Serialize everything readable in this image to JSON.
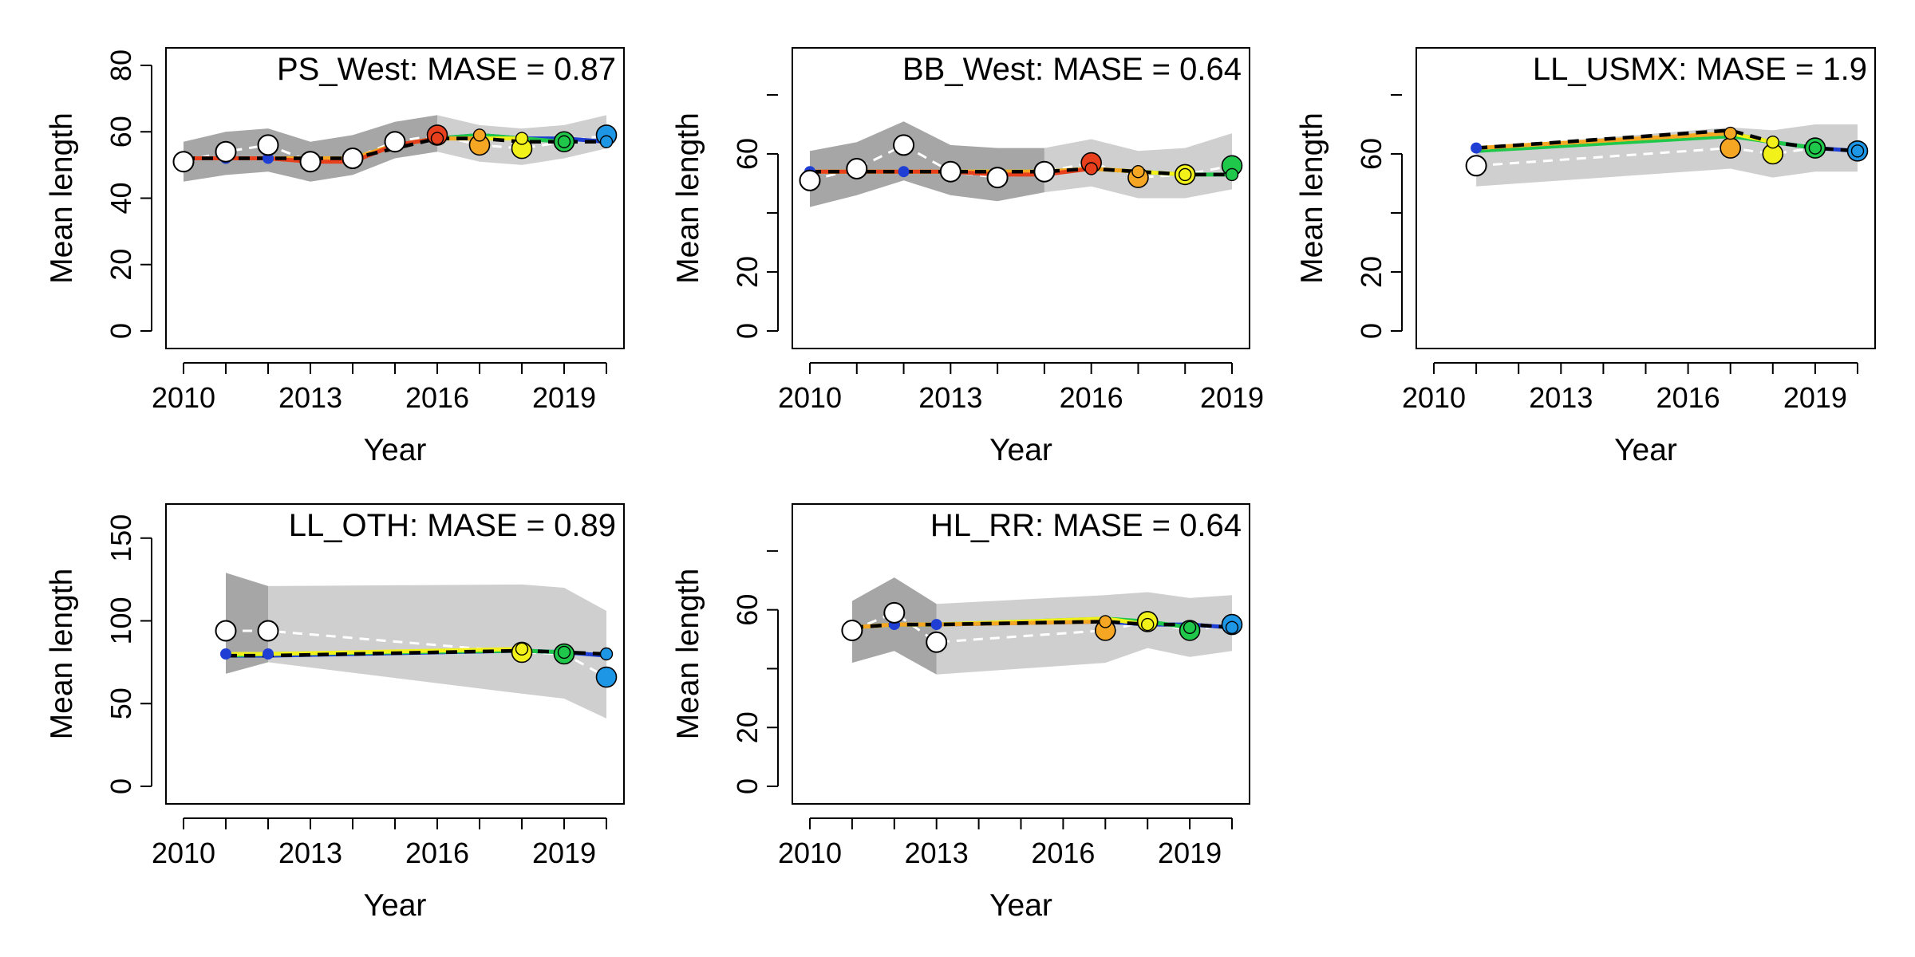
{
  "chart_data": [
    {
      "type": "line",
      "title": "PS_West: MASE = 0.87",
      "xlabel": "Year",
      "ylabel": "Mean length",
      "xlim": [
        2010,
        2020
      ],
      "ylim": [
        0,
        80
      ],
      "xticks": [
        "2010",
        "2013",
        "2016",
        "2019"
      ],
      "yticks": [
        "0",
        "20",
        "40",
        "60",
        "80"
      ],
      "years": [
        2010,
        2011,
        2012,
        2013,
        2014,
        2015,
        2016,
        2017,
        2018,
        2019,
        2020
      ],
      "observed": [
        51,
        54,
        56,
        51,
        52,
        57,
        59,
        56,
        55,
        57,
        59
      ],
      "band_dark": {
        "x": [
          2010,
          2011,
          2012,
          2013,
          2014,
          2015,
          2016
        ],
        "lower": [
          45,
          47,
          48,
          45,
          47,
          52,
          54
        ],
        "upper": [
          57,
          60,
          61,
          57,
          59,
          63,
          65
        ]
      },
      "band_light": {
        "x": [
          2015,
          2016,
          2017,
          2018,
          2019,
          2020
        ],
        "lower": [
          53,
          54,
          51,
          50,
          52,
          55
        ],
        "upper": [
          63,
          65,
          62,
          61,
          62,
          65
        ]
      },
      "reference_fit": [
        52,
        52,
        52,
        52,
        52,
        55,
        58,
        58,
        57,
        57,
        57
      ],
      "retro_peels": [
        {
          "end": 2020,
          "color": "#1f3fd4",
          "values": [
            52,
            52,
            52,
            52,
            52,
            56,
            58,
            59,
            58,
            58,
            57
          ]
        },
        {
          "end": 2019,
          "color": "#1fc84a",
          "values": [
            52,
            52,
            52,
            52,
            52,
            56,
            58,
            59,
            58,
            57
          ]
        },
        {
          "end": 2018,
          "color": "#f2f21a",
          "values": [
            52,
            52,
            52,
            52,
            52,
            56,
            58,
            58,
            58
          ]
        },
        {
          "end": 2017,
          "color": "#f5a623",
          "values": [
            52,
            52,
            52,
            52,
            52,
            56,
            58,
            58
          ]
        },
        {
          "end": 2016,
          "color": "#e8401c",
          "values": [
            52,
            52,
            52,
            51,
            51,
            56,
            58
          ]
        }
      ],
      "prediction_points": [
        {
          "year": 2016,
          "observed": 59,
          "predicted": 58,
          "color": "#e8401c"
        },
        {
          "year": 2017,
          "observed": 56,
          "predicted": 59,
          "color": "#f5a623"
        },
        {
          "year": 2018,
          "observed": 55,
          "predicted": 58,
          "color": "#f2f21a"
        },
        {
          "year": 2019,
          "observed": 57,
          "predicted": 57,
          "color": "#1fc84a"
        },
        {
          "year": 2020,
          "observed": 59,
          "predicted": 57,
          "color": "#1e96e6"
        }
      ]
    },
    {
      "type": "line",
      "title": "BB_West: MASE = 0.64",
      "xlabel": "Year",
      "ylabel": "Mean length",
      "xlim": [
        2010,
        2019
      ],
      "ylim": [
        0,
        90
      ],
      "xticks": [
        "2010",
        "2013",
        "2016",
        "2019"
      ],
      "yticks": [
        "0",
        "20",
        "60"
      ],
      "years": [
        2010,
        2011,
        2012,
        2013,
        2014,
        2015,
        2016,
        2017,
        2018,
        2019
      ],
      "observed": [
        51,
        55,
        63,
        54,
        52,
        54,
        57,
        52,
        53,
        56
      ],
      "band_dark": {
        "x": [
          2010,
          2011,
          2012,
          2013,
          2014,
          2015
        ],
        "lower": [
          42,
          46,
          51,
          46,
          44,
          47
        ],
        "upper": [
          61,
          64,
          71,
          63,
          62,
          62
        ]
      },
      "band_light": {
        "x": [
          2015,
          2016,
          2017,
          2018,
          2019
        ],
        "lower": [
          47,
          49,
          45,
          45,
          48
        ],
        "upper": [
          62,
          65,
          61,
          62,
          67
        ]
      },
      "reference_fit": [
        54,
        54,
        54,
        54,
        54,
        54,
        55,
        54,
        53,
        53
      ],
      "retro_peels": [
        {
          "end": 2019,
          "color": "#1fc84a",
          "values": [
            54,
            54,
            54,
            54,
            54,
            54,
            55,
            54,
            53,
            53
          ]
        },
        {
          "end": 2018,
          "color": "#f2f21a",
          "values": [
            54,
            54,
            54,
            54,
            54,
            54,
            55,
            54,
            53
          ]
        },
        {
          "end": 2017,
          "color": "#f5a623",
          "values": [
            54,
            54,
            54,
            54,
            54,
            54,
            55,
            54
          ]
        },
        {
          "end": 2016,
          "color": "#e8401c",
          "values": [
            54,
            54,
            54,
            54,
            53,
            53,
            55
          ]
        }
      ],
      "prediction_points": [
        {
          "year": 2016,
          "observed": 57,
          "predicted": 55,
          "color": "#e8401c"
        },
        {
          "year": 2017,
          "observed": 52,
          "predicted": 54,
          "color": "#f5a623"
        },
        {
          "year": 2018,
          "observed": 53,
          "predicted": 53,
          "color": "#f2f21a"
        },
        {
          "year": 2019,
          "observed": 56,
          "predicted": 53,
          "color": "#1fc84a"
        }
      ]
    },
    {
      "type": "line",
      "title": "LL_USMX: MASE = 1.9",
      "xlabel": "Year",
      "ylabel": "Mean length",
      "xlim": [
        2010,
        2020
      ],
      "ylim": [
        0,
        90
      ],
      "xticks": [
        "2010",
        "2013",
        "2016",
        "2019"
      ],
      "yticks": [
        "0",
        "20",
        "60"
      ],
      "years": [
        2011,
        2017,
        2018,
        2019,
        2020
      ],
      "observed": [
        56,
        62,
        60,
        62,
        61
      ],
      "band_dark": {
        "x": [],
        "lower": [],
        "upper": []
      },
      "band_light": {
        "x": [
          2011,
          2017,
          2018,
          2019,
          2020
        ],
        "lower": [
          49,
          55,
          52,
          54,
          54
        ],
        "upper": [
          62,
          69,
          68,
          70,
          70
        ]
      },
      "reference_fit": [
        62,
        68,
        64,
        62,
        61
      ],
      "retro_peels": [
        {
          "end": 2020,
          "color": "#1f3fd4",
          "values": [
            61,
            67,
            64,
            62,
            61
          ]
        },
        {
          "end": 2019,
          "color": "#1fc84a",
          "values": [
            61,
            66,
            64,
            62
          ]
        },
        {
          "end": 2018,
          "color": "#f2f21a",
          "values": [
            62,
            67,
            64
          ]
        },
        {
          "end": 2017,
          "color": "#f5a623",
          "values": [
            62,
            67
          ]
        }
      ],
      "prediction_points": [
        {
          "year": 2017,
          "observed": 62,
          "predicted": 67,
          "color": "#f5a623"
        },
        {
          "year": 2018,
          "observed": 60,
          "predicted": 64,
          "color": "#f2f21a"
        },
        {
          "year": 2019,
          "observed": 62,
          "predicted": 62,
          "color": "#1fc84a"
        },
        {
          "year": 2020,
          "observed": 61,
          "predicted": 61,
          "color": "#1e96e6"
        }
      ]
    },
    {
      "type": "line",
      "title": "LL_OTH: MASE = 0.89",
      "xlabel": "Year",
      "ylabel": "Mean length",
      "xlim": [
        2010,
        2020
      ],
      "ylim": [
        0,
        160
      ],
      "xticks": [
        "2010",
        "2013",
        "2016",
        "2019"
      ],
      "yticks": [
        "0",
        "50",
        "100",
        "150"
      ],
      "years": [
        2011,
        2012,
        2018,
        2019,
        2020
      ],
      "observed": [
        94,
        94,
        81,
        80,
        66
      ],
      "band_dark": {
        "x": [
          2011,
          2012
        ],
        "lower": [
          68,
          75
        ],
        "upper": [
          129,
          121
        ]
      },
      "band_light": {
        "x": [
          2012,
          2018,
          2019,
          2020
        ],
        "lower": [
          75,
          56,
          53,
          41
        ],
        "upper": [
          121,
          122,
          120,
          106
        ]
      },
      "reference_fit": [
        79,
        79,
        82,
        81,
        80
      ],
      "retro_peels": [
        {
          "end": 2020,
          "color": "#1f3fd4",
          "values": [
            79,
            79,
            82,
            81,
            79
          ]
        },
        {
          "end": 2019,
          "color": "#1fc84a",
          "values": [
            79,
            80,
            82,
            81
          ]
        },
        {
          "end": 2018,
          "color": "#f2f21a",
          "values": [
            80,
            80,
            83
          ]
        }
      ],
      "prediction_points": [
        {
          "year": 2018,
          "observed": 81,
          "predicted": 83,
          "color": "#f2f21a"
        },
        {
          "year": 2019,
          "observed": 80,
          "predicted": 81,
          "color": "#1fc84a"
        },
        {
          "year": 2020,
          "observed": 66,
          "predicted": 80,
          "color": "#1e96e6"
        }
      ]
    },
    {
      "type": "line",
      "title": "HL_RR: MASE = 0.64",
      "xlabel": "Year",
      "ylabel": "Mean length",
      "xlim": [
        2010,
        2020
      ],
      "ylim": [
        0,
        90
      ],
      "xticks": [
        "2010",
        "2013",
        "2016",
        "2019"
      ],
      "yticks": [
        "0",
        "20",
        "60"
      ],
      "years": [
        2011,
        2012,
        2013,
        2017,
        2018,
        2019,
        2020
      ],
      "observed": [
        53,
        59,
        49,
        53,
        56,
        53,
        55
      ],
      "band_dark": {
        "x": [
          2011,
          2012,
          2013
        ],
        "lower": [
          42,
          46,
          38
        ],
        "upper": [
          63,
          71,
          62
        ]
      },
      "band_light": {
        "x": [
          2013,
          2017,
          2018,
          2019,
          2020
        ],
        "lower": [
          38,
          42,
          47,
          44,
          46
        ],
        "upper": [
          62,
          65,
          66,
          64,
          65
        ]
      },
      "reference_fit": [
        54,
        55,
        55,
        56,
        55,
        55,
        54
      ],
      "retro_peels": [
        {
          "end": 2020,
          "color": "#1f3fd4",
          "values": [
            54,
            55,
            55,
            56,
            55,
            55,
            54
          ]
        },
        {
          "end": 2019,
          "color": "#1fc84a",
          "values": [
            54,
            55,
            55,
            57,
            56,
            54
          ]
        },
        {
          "end": 2018,
          "color": "#f2f21a",
          "values": [
            54,
            55,
            55,
            57,
            55
          ]
        },
        {
          "end": 2017,
          "color": "#f5a623",
          "values": [
            54,
            55,
            55,
            56
          ]
        }
      ],
      "prediction_points": [
        {
          "year": 2017,
          "observed": 53,
          "predicted": 56,
          "color": "#f5a623"
        },
        {
          "year": 2018,
          "observed": 56,
          "predicted": 55,
          "color": "#f2f21a"
        },
        {
          "year": 2019,
          "observed": 53,
          "predicted": 54,
          "color": "#1fc84a"
        },
        {
          "year": 2020,
          "observed": 55,
          "predicted": 54,
          "color": "#1e96e6"
        }
      ]
    }
  ]
}
